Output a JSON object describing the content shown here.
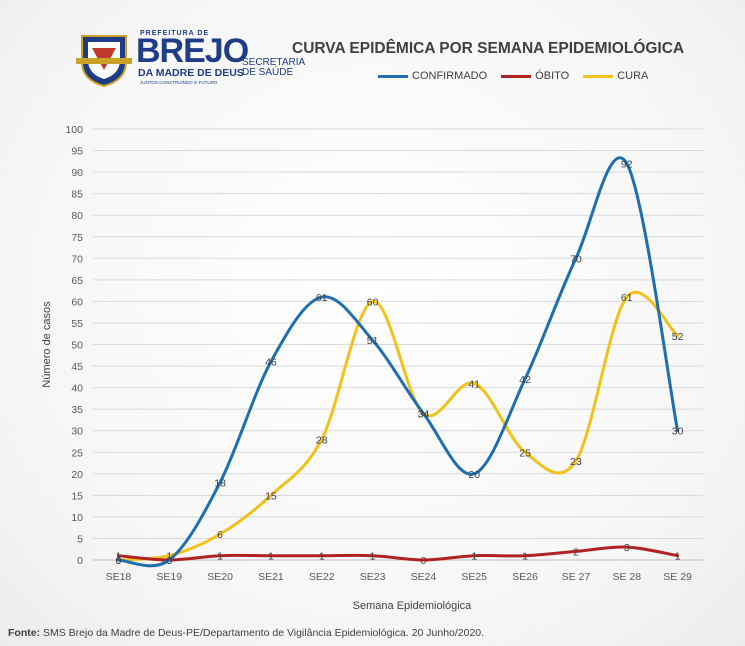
{
  "header": {
    "logo": {
      "prefeitura": "PREFEITURA DE",
      "brejo": "BREJO",
      "madre": "DA MADRE DE DEUS",
      "slogan": "JUNTOS CONSTRUINDO O FUTURO",
      "secretaria_line1": "SECRETARIA",
      "secretaria_line2": "DE SAÚDE"
    }
  },
  "footer": {
    "source_label": "Fonte:",
    "source_text": " SMS Brejo da Madre de Deus-PE/Departamento de Vigilância Epidemiológica. 20 Junho/2020."
  },
  "chart_data": {
    "type": "line",
    "title": "CURVA EPIDÊMICA POR SEMANA EPIDEMIOLÓGICA",
    "xlabel": "Semana Epidemiológica",
    "ylabel": "Número de casos",
    "categories": [
      "SE18",
      "SE19",
      "SE20",
      "SE21",
      "SE22",
      "SE23",
      "SE24",
      "SE25",
      "SE26",
      "SE 27",
      "SE 28",
      "SE 29"
    ],
    "ylim": [
      0,
      100
    ],
    "yticks": [
      0,
      5,
      10,
      15,
      20,
      25,
      30,
      35,
      40,
      45,
      50,
      55,
      60,
      65,
      70,
      75,
      80,
      85,
      90,
      95,
      100
    ],
    "smooth": true,
    "grid": true,
    "legend_position": "top",
    "series": [
      {
        "name": "CONFIRMADO",
        "color": "#1f6fb0",
        "values": [
          0,
          0,
          18,
          46,
          61,
          51,
          34,
          20,
          42,
          70,
          92,
          30
        ]
      },
      {
        "name": "ÓBITO",
        "color": "#b22222",
        "values": [
          1,
          0,
          1,
          1,
          1,
          1,
          0,
          1,
          1,
          2,
          3,
          1
        ]
      },
      {
        "name": "CURA",
        "color": "#f2c21a",
        "values": [
          0,
          1,
          6,
          15,
          28,
          60,
          34,
          41,
          25,
          23,
          61,
          52
        ]
      }
    ]
  }
}
